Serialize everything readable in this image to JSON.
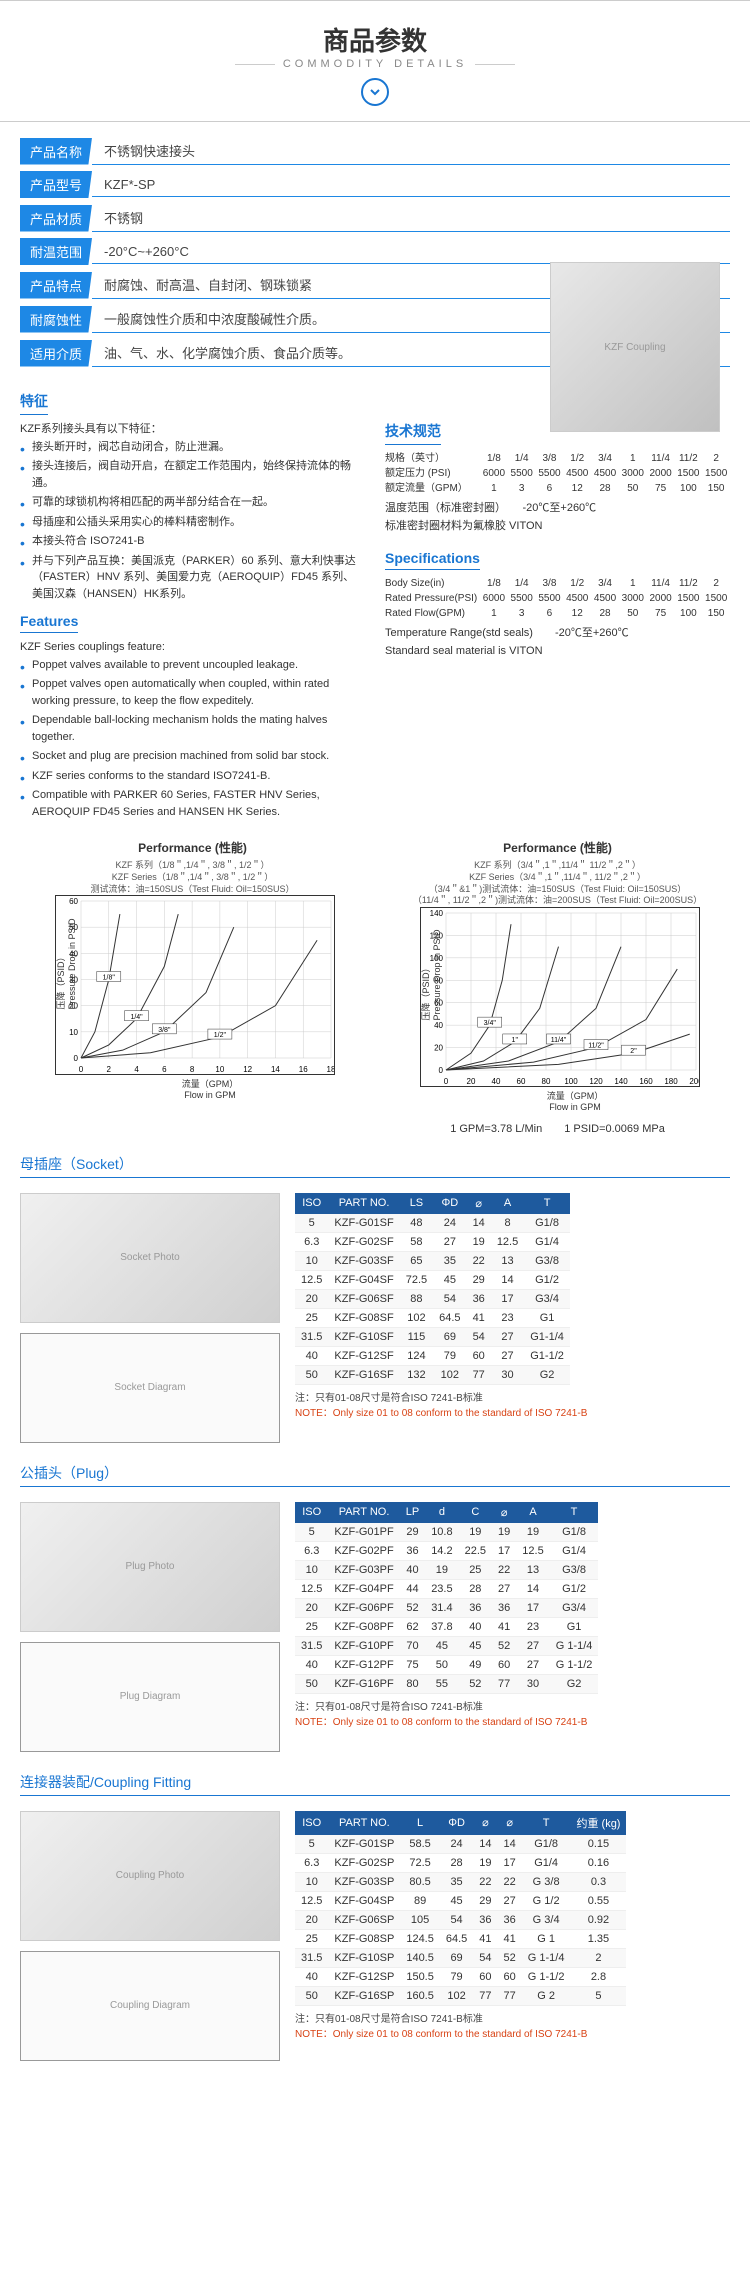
{
  "header": {
    "title": "商品参数",
    "subtitle": "COMMODITY DETAILS"
  },
  "specs": [
    {
      "label": "产品名称",
      "value": "不锈钢快速接头"
    },
    {
      "label": "产品型号",
      "value": "KZF*-SP"
    },
    {
      "label": "产品材质",
      "value": "不锈钢"
    },
    {
      "label": "耐温范围",
      "value": "-20°C~+260°C"
    },
    {
      "label": "产品特点",
      "value": "耐腐蚀、耐高温、自封闭、钢珠锁紧"
    },
    {
      "label": "耐腐蚀性",
      "value": "一般腐蚀性介质和中浓度酸碱性介质。"
    },
    {
      "label": "适用介质",
      "value": "油、气、水、化学腐蚀介质、食品介质等。"
    }
  ],
  "features_cn": {
    "heading": "特征",
    "intro": "KZF系列接头具有以下特征：",
    "items": [
      "接头断开时，阀芯自动闭合，防止泄漏。",
      "接头连接后，阀自动开启，在额定工作范围内，始终保持流体的畅通。",
      "可靠的球锁机构将相匹配的两半部分结合在一起。",
      "母插座和公插头采用实心的棒料精密制作。",
      "本接头符合 ISO7241-B",
      "并与下列产品互换：美国派克（PARKER）60 系列、意大利快事达（FASTER）HNV 系列、美国爱力克（AEROQUIP）FD45 系列、美国汉森（HANSEN）HK系列。"
    ]
  },
  "features_en": {
    "heading": "Features",
    "intro": "KZF Series couplings feature:",
    "items": [
      "Poppet valves available to prevent uncoupled leakage.",
      "Poppet valves open automatically when coupled, within rated working pressure, to keep the flow expeditely.",
      "Dependable ball-locking mechanism holds the mating halves together.",
      "Socket and plug are precision machined from solid bar stock.",
      "KZF series conforms to the standard ISO7241-B.",
      "Compatible with PARKER 60 Series, FASTER HNV Series, AEROQUIP FD45 Series and HANSEN HK Series."
    ]
  },
  "tech_cn": {
    "heading": "技术规范",
    "rows": [
      {
        "label": "规格（英寸）",
        "vals": [
          "1/8",
          "1/4",
          "3/8",
          "1/2",
          "3/4",
          "1",
          "11/4",
          "11/2",
          "2"
        ]
      },
      {
        "label": "额定压力 (PSI)",
        "vals": [
          "6000",
          "5500",
          "5500",
          "4500",
          "4500",
          "3000",
          "2000",
          "1500",
          "1500"
        ]
      },
      {
        "label": "额定流量（GPM）",
        "vals": [
          "1",
          "3",
          "6",
          "12",
          "28",
          "50",
          "75",
          "100",
          "150"
        ]
      }
    ],
    "temp": "温度范围（标准密封圈）　　-20℃至+260℃",
    "seal": "标准密封圈材料为氟橡胶 VITON"
  },
  "tech_en": {
    "heading": "Specifications",
    "rows": [
      {
        "label": "Body Size(in)",
        "vals": [
          "1/8",
          "1/4",
          "3/8",
          "1/2",
          "3/4",
          "1",
          "11/4",
          "11/2",
          "2"
        ]
      },
      {
        "label": "Rated Pressure(PSI)",
        "vals": [
          "6000",
          "5500",
          "5500",
          "4500",
          "4500",
          "3000",
          "2000",
          "1500",
          "1500"
        ]
      },
      {
        "label": "Rated Flow(GPM)",
        "vals": [
          "1",
          "3",
          "6",
          "12",
          "28",
          "50",
          "75",
          "100",
          "150"
        ]
      }
    ],
    "temp": "Temperature Range(std seals)　　-20℃至+260℃",
    "seal": "Standard seal material is VITON"
  },
  "chart1": {
    "title": "Performance (性能)",
    "sub1": "KZF  系列（1/8＂,1/4＂,  3/8＂,  1/2＂）",
    "sub2": "KZF  Series（1/8＂,1/4＂,  3/8＂,  1/2＂）",
    "sub3": "测试流体：油=150SUS（Test Fluid:  Oil=150SUS）",
    "ylabel": "压降（PSID）\nPressure Drop in PSID",
    "xlabel": "流量（GPM）\nFlow in GPM",
    "xmax": 18,
    "ymax": 60,
    "xtick": 2,
    "ytick": 10,
    "series": [
      {
        "label": "1/8\"",
        "pts": [
          [
            0,
            0
          ],
          [
            1,
            10
          ],
          [
            2,
            30
          ],
          [
            2.8,
            55
          ]
        ]
      },
      {
        "label": "1/4\"",
        "pts": [
          [
            0,
            0
          ],
          [
            2,
            5
          ],
          [
            4,
            15
          ],
          [
            6,
            35
          ],
          [
            7,
            55
          ]
        ]
      },
      {
        "label": "3/8\"",
        "pts": [
          [
            0,
            0
          ],
          [
            3,
            3
          ],
          [
            6,
            10
          ],
          [
            9,
            25
          ],
          [
            11,
            50
          ]
        ]
      },
      {
        "label": "1/2\"",
        "pts": [
          [
            0,
            0
          ],
          [
            5,
            2
          ],
          [
            10,
            8
          ],
          [
            14,
            20
          ],
          [
            17,
            45
          ]
        ]
      }
    ]
  },
  "chart2": {
    "title": "Performance (性能)",
    "sub1": "KZF  系列（3/4＂,1＂,11/4＂  11/2＂,2＂）",
    "sub2": "KZF  Series（3/4＂,1＂,11/4＂,  11/2＂,2＂）",
    "sub3": "（3/4＂&1＂)测试流体：油=150SUS（Test Fluid:  Oil=150SUS）",
    "sub4": "（11/4＂, 11/2＂,2＂)测试流体：油=200SUS（Test Fluid:  Oil=200SUS）",
    "ylabel": "压降（PSID）\nPressure Drop in PSID",
    "xlabel": "流量（GPM）\nFlow in GPM",
    "xmax": 200,
    "ymax": 140,
    "xtick": 20,
    "ytick": 20,
    "series": [
      {
        "label": "3/4\"",
        "pts": [
          [
            0,
            0
          ],
          [
            20,
            15
          ],
          [
            35,
            40
          ],
          [
            45,
            80
          ],
          [
            52,
            130
          ]
        ]
      },
      {
        "label": "1\"",
        "pts": [
          [
            0,
            0
          ],
          [
            30,
            8
          ],
          [
            55,
            25
          ],
          [
            75,
            55
          ],
          [
            90,
            110
          ]
        ]
      },
      {
        "label": "11/4\"",
        "pts": [
          [
            0,
            0
          ],
          [
            50,
            8
          ],
          [
            90,
            25
          ],
          [
            120,
            55
          ],
          [
            140,
            110
          ]
        ]
      },
      {
        "label": "11/2\"",
        "pts": [
          [
            0,
            0
          ],
          [
            70,
            7
          ],
          [
            120,
            20
          ],
          [
            160,
            45
          ],
          [
            185,
            90
          ]
        ]
      },
      {
        "label": "2\"",
        "pts": [
          [
            0,
            0
          ],
          [
            90,
            5
          ],
          [
            150,
            15
          ],
          [
            195,
            32
          ]
        ]
      }
    ]
  },
  "conversion": {
    "a": "1 GPM=3.78 L/Min",
    "b": "1 PSID=0.0069 MPa"
  },
  "socket": {
    "heading": "母插座（Socket）",
    "cols": [
      "ISO",
      "PART NO.",
      "LS",
      "ΦD",
      "⌀",
      "A",
      "T"
    ],
    "rows": [
      [
        "5",
        "KZF-G01SF",
        "48",
        "24",
        "14",
        "8",
        "G1/8"
      ],
      [
        "6.3",
        "KZF-G02SF",
        "58",
        "27",
        "19",
        "12.5",
        "G1/4"
      ],
      [
        "10",
        "KZF-G03SF",
        "65",
        "35",
        "22",
        "13",
        "G3/8"
      ],
      [
        "12.5",
        "KZF-G04SF",
        "72.5",
        "45",
        "29",
        "14",
        "G1/2"
      ],
      [
        "20",
        "KZF-G06SF",
        "88",
        "54",
        "36",
        "17",
        "G3/4"
      ],
      [
        "25",
        "KZF-G08SF",
        "102",
        "64.5",
        "41",
        "23",
        "G1"
      ],
      [
        "31.5",
        "KZF-G10SF",
        "115",
        "69",
        "54",
        "27",
        "G1-1/4"
      ],
      [
        "40",
        "KZF-G12SF",
        "124",
        "79",
        "60",
        "27",
        "G1-1/2"
      ],
      [
        "50",
        "KZF-G16SF",
        "132",
        "102",
        "77",
        "30",
        "G2"
      ]
    ]
  },
  "plug": {
    "heading": "公插头（Plug）",
    "cols": [
      "ISO",
      "PART NO.",
      "LP",
      "d",
      "C",
      "⌀",
      "A",
      "T"
    ],
    "rows": [
      [
        "5",
        "KZF-G01PF",
        "29",
        "10.8",
        "19",
        "19",
        "19",
        "G1/8"
      ],
      [
        "6.3",
        "KZF-G02PF",
        "36",
        "14.2",
        "22.5",
        "17",
        "12.5",
        "G1/4"
      ],
      [
        "10",
        "KZF-G03PF",
        "40",
        "19",
        "25",
        "22",
        "13",
        "G3/8"
      ],
      [
        "12.5",
        "KZF-G04PF",
        "44",
        "23.5",
        "28",
        "27",
        "14",
        "G1/2"
      ],
      [
        "20",
        "KZF-G06PF",
        "52",
        "31.4",
        "36",
        "36",
        "17",
        "G3/4"
      ],
      [
        "25",
        "KZF-G08PF",
        "62",
        "37.8",
        "40",
        "41",
        "23",
        "G1"
      ],
      [
        "31.5",
        "KZF-G10PF",
        "70",
        "45",
        "45",
        "52",
        "27",
        "G 1-1/4"
      ],
      [
        "40",
        "KZF-G12PF",
        "75",
        "50",
        "49",
        "60",
        "27",
        "G 1-1/2"
      ],
      [
        "50",
        "KZF-G16PF",
        "80",
        "55",
        "52",
        "77",
        "30",
        "G2"
      ]
    ]
  },
  "coupling": {
    "heading": "连接器装配/Coupling Fitting",
    "cols": [
      "ISO",
      "PART NO.",
      "L",
      "ΦD",
      "⌀",
      "⌀",
      "T",
      "约重 (kg)"
    ],
    "rows": [
      [
        "5",
        "KZF-G01SP",
        "58.5",
        "24",
        "14",
        "14",
        "G1/8",
        "0.15"
      ],
      [
        "6.3",
        "KZF-G02SP",
        "72.5",
        "28",
        "19",
        "17",
        "G1/4",
        "0.16"
      ],
      [
        "10",
        "KZF-G03SP",
        "80.5",
        "35",
        "22",
        "22",
        "G 3/8",
        "0.3"
      ],
      [
        "12.5",
        "KZF-G04SP",
        "89",
        "45",
        "29",
        "27",
        "G 1/2",
        "0.55"
      ],
      [
        "20",
        "KZF-G06SP",
        "105",
        "54",
        "36",
        "36",
        "G 3/4",
        "0.92"
      ],
      [
        "25",
        "KZF-G08SP",
        "124.5",
        "64.5",
        "41",
        "41",
        "G 1",
        "1.35"
      ],
      [
        "31.5",
        "KZF-G10SP",
        "140.5",
        "69",
        "54",
        "52",
        "G 1-1/4",
        "2"
      ],
      [
        "40",
        "KZF-G12SP",
        "150.5",
        "79",
        "60",
        "60",
        "G 1-1/2",
        "2.8"
      ],
      [
        "50",
        "KZF-G16SP",
        "160.5",
        "102",
        "77",
        "77",
        "G 2",
        "5"
      ]
    ]
  },
  "note": {
    "cn": "注：只有01-08尺寸是符合ISO 7241-B标准",
    "en": "NOTE：Only size 01 to 08 conform to the standard of ISO 7241-B"
  }
}
